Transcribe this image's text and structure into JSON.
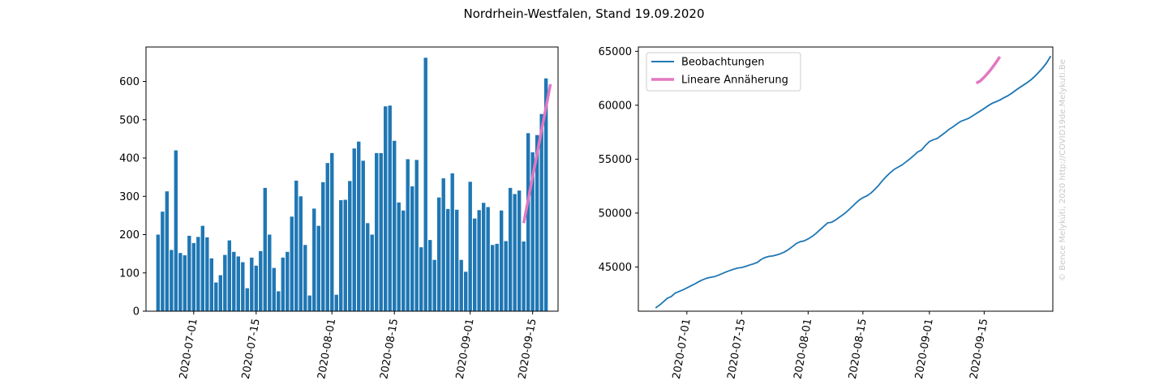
{
  "figure": {
    "title": "Nordrhein-Westfalen, Stand 19.09.2020",
    "credit": "© Bence Melykúti, 2020  http://COVID19de.Melykuti.Be"
  },
  "colors": {
    "bars": "#1f77b4",
    "observed": "#1f77b4",
    "fit": "#e377c2"
  },
  "chart_data": [
    {
      "type": "bar",
      "title": "",
      "xlabel": "",
      "ylabel": "",
      "x_start": "2020-06-23",
      "categories_note": "one bar per day, consecutive dates starting at x_start",
      "values": [
        200,
        260,
        313,
        160,
        420,
        152,
        146,
        197,
        178,
        194,
        223,
        193,
        138,
        75,
        94,
        147,
        185,
        155,
        143,
        128,
        60,
        140,
        119,
        157,
        322,
        200,
        113,
        52,
        140,
        155,
        247,
        341,
        300,
        173,
        41,
        268,
        223,
        337,
        387,
        413,
        43,
        290,
        291,
        340,
        425,
        443,
        393,
        230,
        200,
        413,
        413,
        535,
        537,
        445,
        284,
        263,
        397,
        326,
        395,
        167,
        662,
        186,
        134,
        297,
        347,
        267,
        360,
        265,
        134,
        103,
        338,
        242,
        264,
        283,
        272,
        173,
        176,
        263,
        183,
        322,
        306,
        315,
        182,
        465,
        415,
        460,
        515,
        608
      ],
      "fit": {
        "name": "Lineare Annäherung",
        "x": [
          "2020-09-13",
          "2020-09-19"
        ],
        "y": [
          230,
          593
        ]
      },
      "ylim": [
        0,
        690
      ],
      "yticks": [
        0,
        100,
        200,
        300,
        400,
        500,
        600
      ],
      "xticks": [
        "2020-07-01",
        "2020-07-15",
        "2020-08-01",
        "2020-08-15",
        "2020-09-01",
        "2020-09-15"
      ]
    },
    {
      "type": "line",
      "title": "",
      "xlabel": "",
      "ylabel": "",
      "series": [
        {
          "name": "Beobachtungen",
          "x_start": "2020-06-23",
          "values": [
            41200,
            41460,
            41770,
            42100,
            42260,
            42580,
            42730,
            42880,
            43060,
            43240,
            43420,
            43630,
            43810,
            43950,
            44040,
            44100,
            44230,
            44380,
            44540,
            44670,
            44800,
            44900,
            44950,
            45050,
            45180,
            45290,
            45420,
            45700,
            45880,
            45980,
            46030,
            46120,
            46240,
            46400,
            46620,
            46900,
            47180,
            47350,
            47420,
            47600,
            47830,
            48110,
            48440,
            48770,
            49090,
            49150,
            49350,
            49620,
            49870,
            50170,
            50510,
            50860,
            51190,
            51430,
            51590,
            51840,
            52180,
            52560,
            53010,
            53400,
            53750,
            54050,
            54260,
            54460,
            54740,
            55020,
            55330,
            55660,
            55850,
            56280,
            56630,
            56800,
            56920,
            57190,
            57460,
            57760,
            57990,
            58260,
            58500,
            58640,
            58780,
            59000,
            59240,
            59460,
            59700,
            59950,
            60170,
            60320,
            60480,
            60690,
            60870,
            61100,
            61370,
            61620,
            61860,
            62100,
            62370,
            62700,
            63080,
            63480,
            63950,
            64550
          ]
        },
        {
          "name": "Lineare Annäherung",
          "x": [
            "2020-09-13",
            "2020-09-14",
            "2020-09-15",
            "2020-09-16",
            "2020-09-17",
            "2020-09-18",
            "2020-09-19"
          ],
          "values": [
            62050,
            62250,
            62600,
            63000,
            63450,
            63950,
            64500
          ]
        }
      ],
      "legend": "top-left",
      "ylim": [
        40900,
        65400
      ],
      "yticks": [
        45000,
        50000,
        55000,
        60000,
        65000
      ],
      "xticks": [
        "2020-07-01",
        "2020-07-15",
        "2020-08-01",
        "2020-08-15",
        "2020-09-01",
        "2020-09-15"
      ]
    }
  ]
}
